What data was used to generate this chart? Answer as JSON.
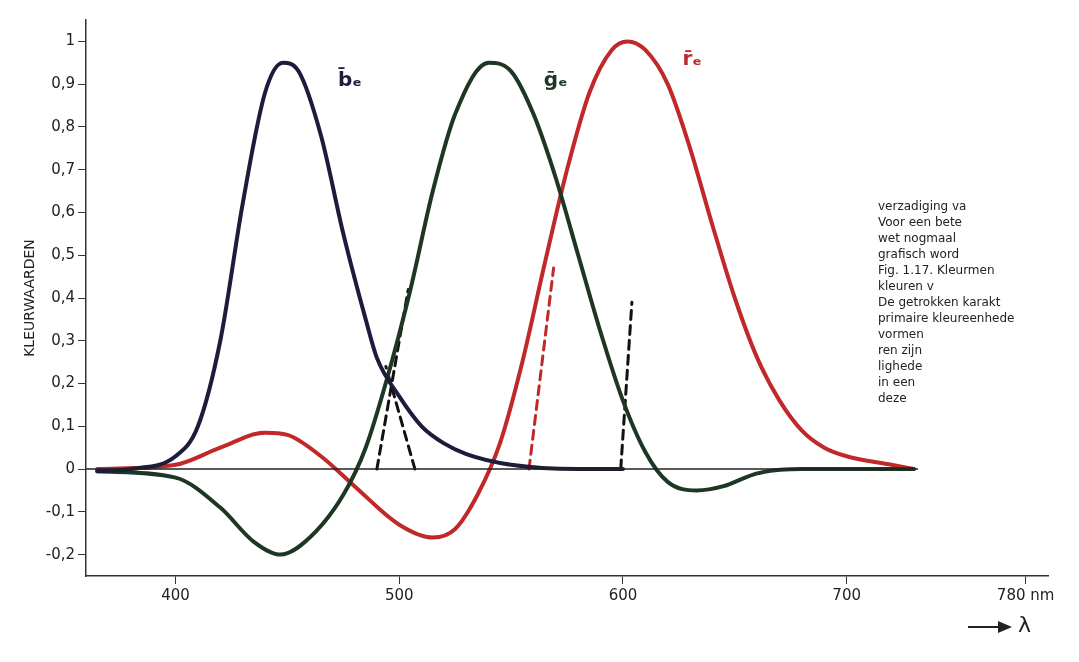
{
  "chart_data": {
    "type": "line",
    "ylabel": "KLEURWAARDEN",
    "xlabel": "λ",
    "xlim": [
      360,
      790
    ],
    "xticks": [
      400,
      500,
      600,
      700,
      {
        "value": 780,
        "label": "780 nm"
      }
    ],
    "ylim": [
      -0.25,
      1.05
    ],
    "yticks": [
      {
        "value": -0.2,
        "label": "-0,2"
      },
      {
        "value": -0.1,
        "label": "-0,1"
      },
      0,
      {
        "value": 0.1,
        "label": "0,1"
      },
      {
        "value": 0.2,
        "label": "0,2"
      },
      {
        "value": 0.3,
        "label": "0,3"
      },
      {
        "value": 0.4,
        "label": "0,4"
      },
      {
        "value": 0.5,
        "label": "0,5"
      },
      {
        "value": 0.6,
        "label": "0,6"
      },
      {
        "value": 0.7,
        "label": "0,7"
      },
      {
        "value": 0.8,
        "label": "0,8"
      },
      {
        "value": 0.9,
        "label": "0,9"
      },
      1
    ],
    "grid": false,
    "legend": false,
    "marker": "none",
    "line_style": "solid",
    "ref_lines": [
      {
        "axis": "y",
        "value": 0,
        "color": "#222222"
      }
    ],
    "series": [
      {
        "name": "b̄ₑ",
        "color": "#1c1c3c",
        "x": [
          365,
          380,
          400,
          410,
          420,
          430,
          440,
          448,
          455,
          465,
          475,
          485,
          490,
          500,
          510,
          520,
          530,
          550,
          580,
          600
        ],
        "values": [
          -0.005,
          0,
          0.03,
          0.1,
          0.3,
          0.62,
          0.88,
          0.95,
          0.93,
          0.78,
          0.55,
          0.35,
          0.26,
          0.17,
          0.1,
          0.06,
          0.035,
          0.01,
          0,
          0
        ]
      },
      {
        "name": "ḡₑ",
        "color": "#1e3624",
        "x": [
          365,
          400,
          420,
          435,
          447,
          460,
          475,
          485,
          495,
          505,
          515,
          525,
          540,
          550,
          560,
          570,
          580,
          590,
          600,
          610,
          620,
          633,
          645,
          660,
          680,
          730
        ],
        "values": [
          -0.005,
          -0.02,
          -0.09,
          -0.17,
          -0.2,
          -0.16,
          -0.06,
          0.05,
          0.22,
          0.42,
          0.65,
          0.83,
          0.95,
          0.93,
          0.83,
          0.68,
          0.5,
          0.32,
          0.16,
          0.04,
          -0.03,
          -0.05,
          -0.04,
          -0.01,
          0,
          0
        ]
      },
      {
        "name": "r̄ₑ",
        "color": "#c0282a",
        "x": [
          365,
          400,
          420,
          440,
          450,
          465,
          480,
          500,
          515,
          525,
          535,
          545,
          555,
          565,
          575,
          585,
          595,
          602,
          610,
          620,
          630,
          640,
          650,
          660,
          670,
          680,
          690,
          700,
          720,
          730
        ],
        "values": [
          0,
          0.01,
          0.05,
          0.085,
          0.08,
          0.03,
          -0.04,
          -0.13,
          -0.16,
          -0.14,
          -0.06,
          0.06,
          0.25,
          0.48,
          0.7,
          0.88,
          0.98,
          1.0,
          0.98,
          0.9,
          0.75,
          0.57,
          0.4,
          0.26,
          0.16,
          0.09,
          0.05,
          0.03,
          0.01,
          0
        ]
      },
      {
        "color": "#111111",
        "line_style": "dashed",
        "x": [
          490,
          504
        ],
        "values": [
          0,
          0.42
        ]
      },
      {
        "color": "#111111",
        "line_style": "dashed",
        "x": [
          507,
          494
        ],
        "values": [
          0,
          0.24
        ]
      },
      {
        "color": "#c0282a",
        "line_style": "dashed",
        "x": [
          558,
          569
        ],
        "values": [
          0,
          0.47
        ]
      },
      {
        "color": "#111111",
        "line_style": "dashed",
        "x": [
          599,
          604
        ],
        "values": [
          0,
          0.39
        ]
      }
    ],
    "annotations": [
      "verzadiging va",
      "Voor een bete",
      "wet nogmaal",
      "grafisch word",
      "Fig. 1.17. Kleurmen",
      "kleuren v",
      "De getrokken karakt",
      "primaire kleureenhede",
      "vormen",
      "ren zijn",
      "lighede",
      "in een",
      "deze"
    ]
  }
}
